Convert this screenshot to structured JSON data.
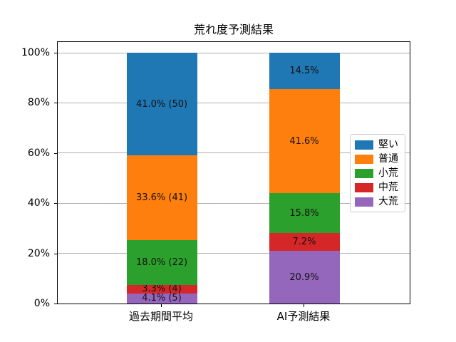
{
  "chart_data": {
    "type": "bar",
    "stacked": true,
    "title": "荒れ度予測結果",
    "xlabel": "",
    "ylabel": "",
    "categories": [
      "過去期間平均",
      "AI予測結果"
    ],
    "series": [
      {
        "name": "堅い",
        "color": "#1f77b4",
        "values": [
          41.0,
          14.5
        ],
        "labels": [
          "41.0% (50)",
          "14.5%"
        ]
      },
      {
        "name": "普通",
        "color": "#ff7f0e",
        "values": [
          33.6,
          41.6
        ],
        "labels": [
          "33.6% (41)",
          "41.6%"
        ]
      },
      {
        "name": "小荒",
        "color": "#2ca02c",
        "values": [
          18.0,
          15.8
        ],
        "labels": [
          "18.0% (22)",
          "15.8%"
        ]
      },
      {
        "name": "中荒",
        "color": "#d62728",
        "values": [
          3.3,
          7.2
        ],
        "labels": [
          "3.3% (4)",
          "7.2%"
        ]
      },
      {
        "name": "大荒",
        "color": "#9467bd",
        "values": [
          4.1,
          20.9
        ],
        "labels": [
          "4.1% (5)",
          "20.9%"
        ]
      }
    ],
    "stack_order_bottom_to_top": [
      "大荒",
      "中荒",
      "小荒",
      "普通",
      "堅い"
    ],
    "legend": {
      "position": "center-right",
      "entries": [
        "堅い",
        "普通",
        "小荒",
        "中荒",
        "大荒"
      ]
    },
    "y_ticks": [
      {
        "value": 0,
        "label": "0%"
      },
      {
        "value": 20,
        "label": "20%"
      },
      {
        "value": 40,
        "label": "40%"
      },
      {
        "value": 60,
        "label": "60%"
      },
      {
        "value": 80,
        "label": "80%"
      },
      {
        "value": 100,
        "label": "100%"
      }
    ],
    "ylim": [
      0,
      105
    ],
    "grid": true,
    "gridline_color": "#b0b0b0"
  }
}
